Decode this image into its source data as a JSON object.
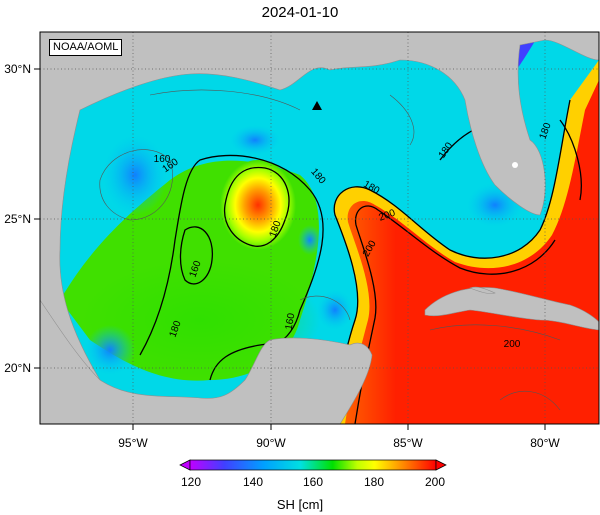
{
  "title": "2024-01-10",
  "credit": "NOAA/AOML",
  "lon_ticks": [
    "95°W",
    "90°W",
    "85°W",
    "80°W"
  ],
  "lat_ticks": [
    "30°N",
    "25°N",
    "20°N"
  ],
  "colorbar": {
    "label": "SH [cm]",
    "ticks": [
      "120",
      "140",
      "160",
      "180",
      "200"
    ],
    "min": 115,
    "max": 205,
    "colors": [
      "#c000ff",
      "#4040ff",
      "#00a0ff",
      "#00e0e0",
      "#00e000",
      "#c0ff00",
      "#ffff00",
      "#ff9000",
      "#ff0000"
    ]
  },
  "contour_labels": [
    "160",
    "180",
    "180",
    "180",
    "200",
    "200",
    "160",
    "180",
    "180",
    "160",
    "160",
    "180",
    "200"
  ],
  "colors": {
    "land": "#c0c0c0",
    "gulf_loop": "#ff2000",
    "marker": "#000000"
  },
  "marker": {
    "symbol": "triangle",
    "lon": -88.3,
    "lat": 28.9
  },
  "extent": {
    "lon": [
      -98,
      -78
    ],
    "lat": [
      18,
      31
    ]
  }
}
